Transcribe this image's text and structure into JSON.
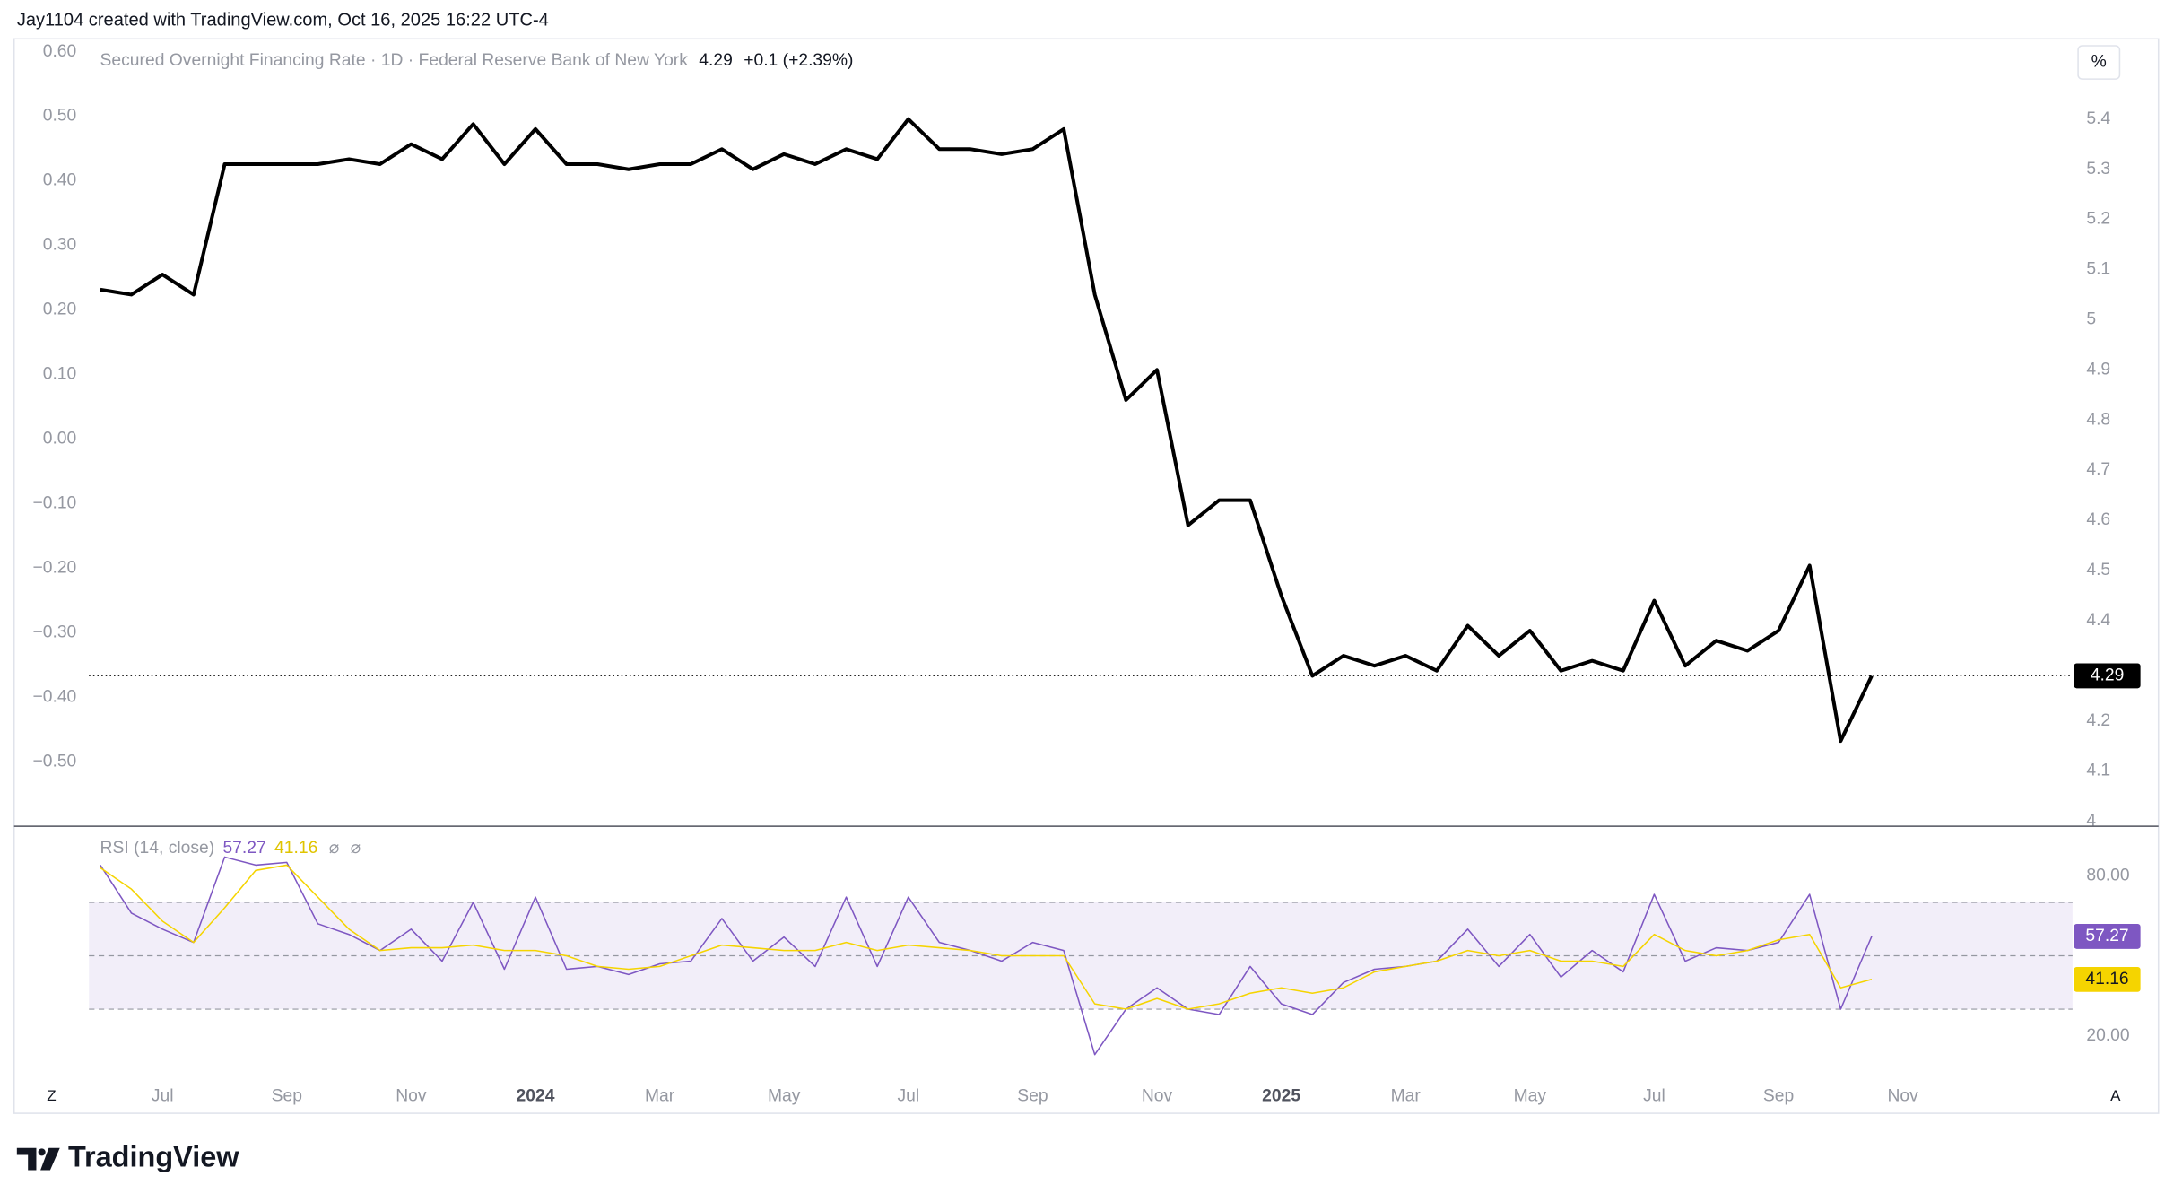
{
  "header": "Jay1104 created with TradingView.com, Oct 16, 2025 16:22 UTC-4",
  "logo": "TradingView",
  "controls": [
    "Z",
    "A"
  ],
  "chart_data": [
    {
      "type": "line",
      "legend_change": "+0.1 (+2.39%)",
      "unit": "%",
      "categories": [
        null,
        null,
        "Jul",
        null,
        null,
        null,
        "Sep",
        null,
        null,
        null,
        "Nov",
        null,
        null,
        null,
        "2024",
        null,
        null,
        null,
        "Mar",
        null,
        null,
        null,
        "May",
        null,
        null,
        null,
        "Jul",
        null,
        null,
        null,
        "Sep",
        null,
        null,
        null,
        "Nov",
        null,
        null,
        null,
        "2025",
        null,
        null,
        null,
        "Mar",
        null,
        null,
        null,
        "May",
        null,
        null,
        null,
        "Jul",
        null,
        null,
        null,
        "Sep",
        null,
        null,
        null,
        "Nov"
      ],
      "ylim": [
        -0.6,
        0.62
      ],
      "yticks": [
        {
          "value": 0.6,
          "label": "0.60"
        },
        {
          "value": 0.5,
          "label": "0.50"
        },
        {
          "value": 0.4,
          "label": "0.40"
        },
        {
          "value": 0.3,
          "label": "0.30"
        },
        {
          "value": 0.2,
          "label": "0.20"
        },
        {
          "value": 0.1,
          "label": "0.10"
        },
        {
          "value": 0,
          "label": "0.00"
        },
        {
          "value": -0.1,
          "label": "−0.10"
        },
        {
          "value": -0.2,
          "label": "−0.20"
        },
        {
          "value": -0.3,
          "label": "−0.30"
        },
        {
          "value": -0.4,
          "label": "−0.40"
        },
        {
          "value": -0.5,
          "label": "−0.50"
        }
      ],
      "y2lim": [
        3.99,
        5.56
      ],
      "y2ticks": [
        5.4,
        5.3,
        5.2,
        5.1,
        5,
        4.9,
        4.8,
        4.7,
        4.6,
        4.5,
        4.4,
        4.3,
        4.2,
        4.1,
        4
      ],
      "last_value_line": true,
      "series": [
        {
          "name": "Secured Overnight Financing Rate · 1D · Federal Reserve Bank of New York",
          "color": "#000000",
          "axis": "y2",
          "values": [
            5.06,
            5.05,
            5.09,
            5.05,
            5.31,
            5.31,
            5.31,
            5.31,
            5.32,
            5.31,
            5.35,
            5.32,
            5.39,
            5.31,
            5.38,
            5.31,
            5.31,
            5.3,
            5.31,
            5.31,
            5.34,
            5.3,
            5.33,
            5.31,
            5.34,
            5.32,
            5.4,
            5.34,
            5.34,
            5.33,
            5.34,
            5.38,
            5.05,
            4.84,
            4.9,
            4.59,
            4.64,
            4.64,
            4.45,
            4.29,
            4.33,
            4.31,
            4.33,
            4.3,
            4.39,
            4.33,
            4.38,
            4.3,
            4.32,
            4.3,
            4.44,
            4.31,
            4.36,
            4.34,
            4.38,
            4.51,
            4.16,
            4.29,
            null
          ]
        }
      ]
    },
    {
      "type": "line",
      "title": "RSI (14, close)",
      "icons": [
        "⌀",
        "⌀"
      ],
      "ylim": [
        4,
        98
      ],
      "yticks": [
        {
          "value": 80,
          "label": "80.00"
        },
        {
          "value": 20,
          "label": "20.00"
        }
      ],
      "levels": [
        70,
        50,
        30
      ],
      "band_color": "#7e57c2",
      "series": [
        {
          "color": "#7e57c2",
          "values": [
            84,
            66,
            60,
            55,
            87,
            84,
            85,
            62,
            58,
            52,
            60,
            48,
            70,
            45,
            72,
            45,
            46,
            43,
            47,
            48,
            64,
            48,
            57,
            46,
            72,
            46,
            72,
            55,
            52,
            48,
            55,
            52,
            13,
            30,
            38,
            30,
            28,
            46,
            32,
            28,
            40,
            45,
            46,
            48,
            60,
            46,
            58,
            42,
            52,
            44,
            73,
            48,
            53,
            52,
            55,
            73,
            30,
            57.27,
            null
          ]
        },
        {
          "color": "#f5d400",
          "values": [
            83,
            75,
            63,
            55,
            68,
            82,
            84,
            72,
            60,
            52,
            53,
            53,
            54,
            52,
            52,
            50,
            46,
            45,
            46,
            50,
            54,
            53,
            52,
            52,
            55,
            52,
            54,
            53,
            52,
            50,
            50,
            50,
            32,
            30,
            34,
            30,
            32,
            36,
            38,
            36,
            38,
            44,
            46,
            48,
            52,
            50,
            52,
            48,
            48,
            46,
            58,
            52,
            50,
            52,
            56,
            58,
            38,
            41.16,
            null
          ]
        }
      ]
    }
  ]
}
